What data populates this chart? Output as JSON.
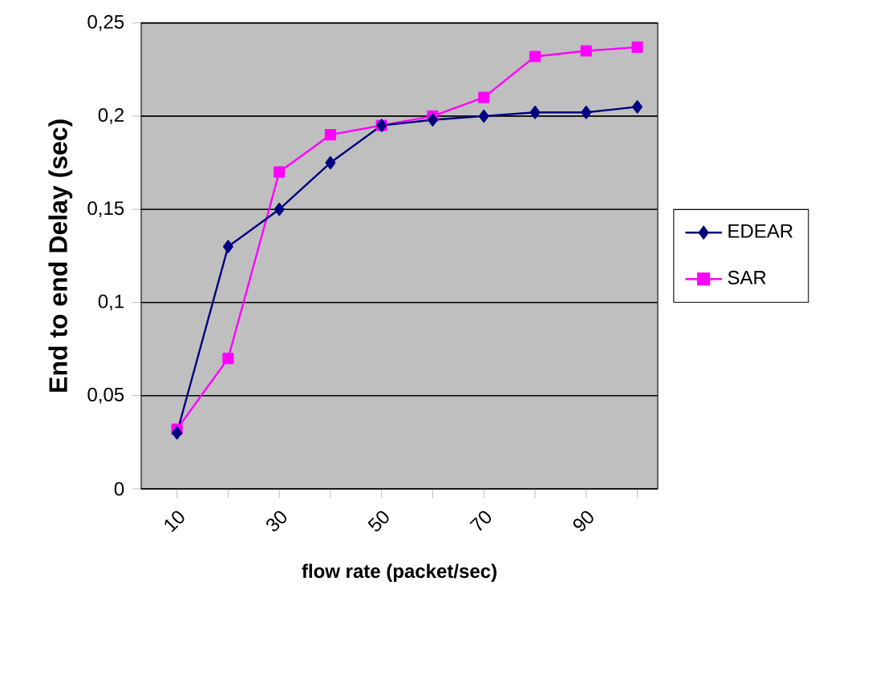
{
  "chart_data": {
    "type": "line",
    "xlabel": "flow rate (packet/sec)",
    "ylabel": "End to end Delay (sec)",
    "categories": [
      "10",
      null,
      "30",
      null,
      "50",
      null,
      "70",
      null,
      "90",
      null
    ],
    "series": [
      {
        "name": "EDEAR",
        "color": "#000080",
        "marker": "diamond",
        "values": [
          0.03,
          0.13,
          0.15,
          0.175,
          0.195,
          0.198,
          0.2,
          0.202,
          0.202,
          0.205
        ]
      },
      {
        "name": "SAR",
        "color": "#ff00ff",
        "marker": "square",
        "values": [
          0.032,
          0.07,
          0.17,
          0.19,
          0.195,
          0.2,
          0.21,
          0.232,
          0.235,
          0.237
        ]
      }
    ],
    "ylim": [
      0,
      0.25
    ],
    "yticks": [
      {
        "value": 0,
        "label": "0"
      },
      {
        "value": 0.05,
        "label": "0,05"
      },
      {
        "value": 0.1,
        "label": "0,1"
      },
      {
        "value": 0.15,
        "label": "0,15"
      },
      {
        "value": 0.2,
        "label": "0,2"
      },
      {
        "value": 0.25,
        "label": "0,25"
      }
    ],
    "grid": "y",
    "legend": "right",
    "line_style": "solid"
  }
}
